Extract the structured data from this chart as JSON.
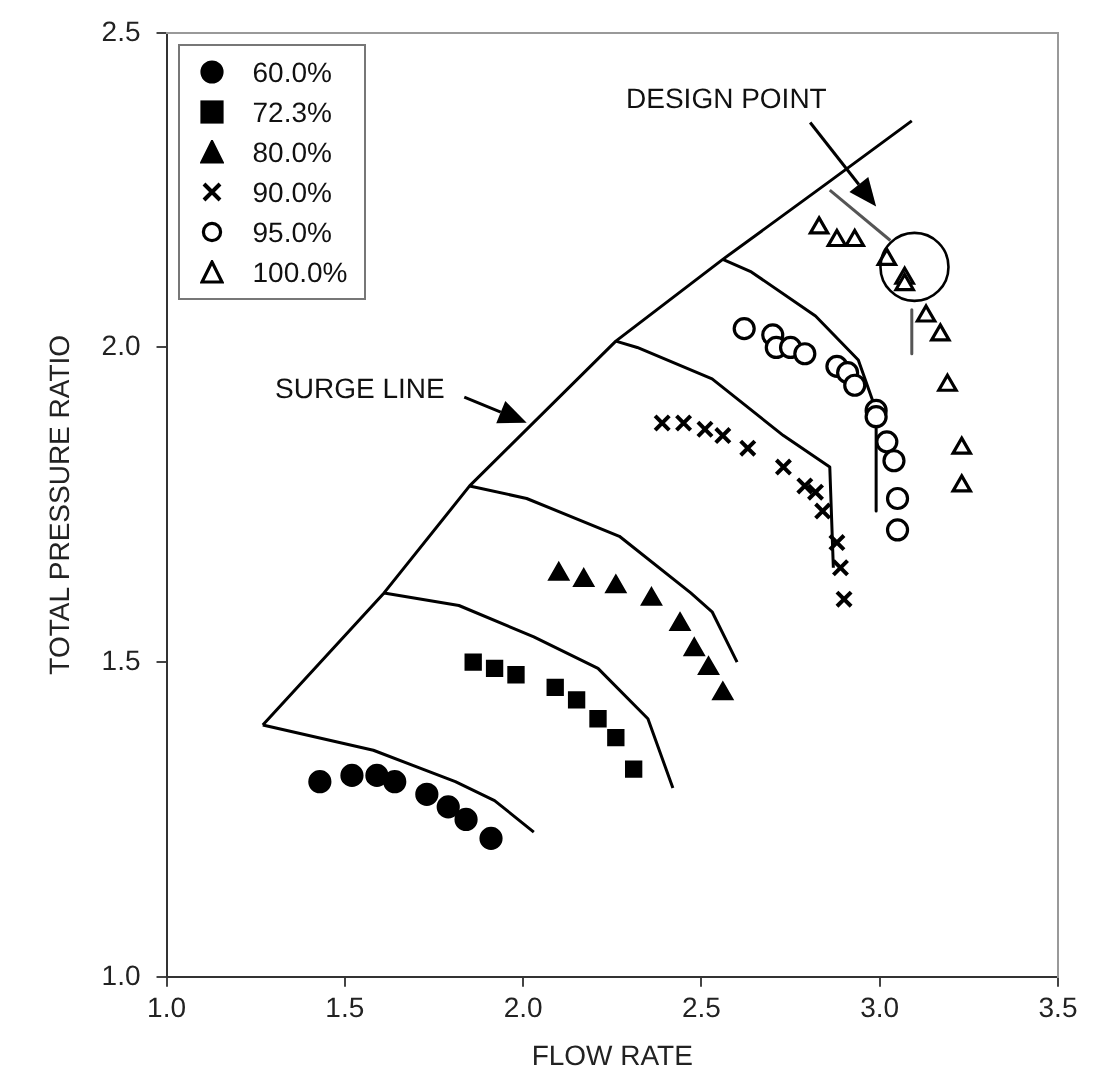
{
  "chart_data": {
    "type": "scatter",
    "xlabel": "FLOW RATE",
    "ylabel": "TOTAL PRESSURE RATIO",
    "xlim": [
      1.0,
      3.5
    ],
    "xticks": [
      {
        "value": 1,
        "label": "1.0"
      },
      {
        "value": 1.5,
        "label": "1.5"
      },
      {
        "value": 2,
        "label": "2.0"
      },
      {
        "value": 2.5,
        "label": "2.5"
      },
      {
        "value": 3,
        "label": "3.0"
      },
      {
        "value": 3.5,
        "label": "3.5"
      }
    ],
    "ylim": [
      1.0,
      2.5
    ],
    "yticks": [
      {
        "value": 1,
        "label": "1.0"
      },
      {
        "value": 1.5,
        "label": "1.5"
      },
      {
        "value": 2,
        "label": "2.0"
      },
      {
        "value": 2.5,
        "label": "2.5"
      }
    ],
    "grid": false,
    "legend": "top left",
    "series": [
      {
        "name": "60.0%",
        "color": "#000000",
        "marker": "circle",
        "x": [
          1.43,
          1.52,
          1.59,
          1.64,
          1.73,
          1.79,
          1.84,
          1.91
        ],
        "values": [
          1.31,
          1.32,
          1.32,
          1.31,
          1.29,
          1.27,
          1.25,
          1.22
        ]
      },
      {
        "name": "72.3%",
        "color": "#000000",
        "marker": "square",
        "x": [
          1.86,
          1.92,
          1.98,
          2.09,
          2.15,
          2.21,
          2.26,
          2.31
        ],
        "values": [
          1.5,
          1.49,
          1.48,
          1.46,
          1.44,
          1.41,
          1.38,
          1.33
        ]
      },
      {
        "name": "80.0%",
        "color": "#000000",
        "marker": "triangle",
        "x": [
          2.1,
          2.17,
          2.26,
          2.36,
          2.44,
          2.48,
          2.52,
          2.56
        ],
        "values": [
          1.64,
          1.63,
          1.62,
          1.6,
          1.56,
          1.52,
          1.49,
          1.45
        ]
      },
      {
        "name": "90.0%",
        "color": "#000000",
        "marker": "cross",
        "x": [
          2.39,
          2.45,
          2.51,
          2.56,
          2.63,
          2.73,
          2.79,
          2.82,
          2.84,
          2.88,
          2.89,
          2.9
        ],
        "values": [
          1.88,
          1.88,
          1.87,
          1.86,
          1.84,
          1.81,
          1.78,
          1.77,
          1.74,
          1.69,
          1.65,
          1.6
        ]
      },
      {
        "name": "95.0%",
        "color": "#000000",
        "marker": "circle",
        "x": [
          2.62,
          2.7,
          2.71,
          2.75,
          2.79,
          2.88,
          2.91,
          2.93,
          2.99,
          2.99,
          3.02,
          3.04,
          3.05,
          3.05
        ],
        "values": [
          2.03,
          2.02,
          2.0,
          2.0,
          1.99,
          1.97,
          1.96,
          1.94,
          1.9,
          1.89,
          1.85,
          1.82,
          1.76,
          1.71
        ]
      },
      {
        "name": "100.0%",
        "color": "#000000",
        "marker": "triangle",
        "x": [
          2.83,
          2.88,
          2.93,
          3.02,
          3.07,
          3.07,
          3.13,
          3.17,
          3.19,
          3.23,
          3.23
        ],
        "values": [
          2.19,
          2.17,
          2.17,
          2.14,
          2.11,
          2.1,
          2.05,
          2.02,
          1.94,
          1.84,
          1.78
        ]
      },
      {
        "type": "line",
        "color": "#000000",
        "marker": "none",
        "x": [
          1.27,
          1.61,
          1.85,
          2.26,
          2.56,
          2.85,
          3.09
        ],
        "values": [
          1.4,
          1.61,
          1.78,
          2.01,
          2.14,
          2.26,
          2.36
        ]
      },
      {
        "type": "line",
        "color": "#000000",
        "marker": "none",
        "x": [
          1.27,
          1.58,
          1.81,
          1.92,
          2.03
        ],
        "values": [
          1.4,
          1.36,
          1.31,
          1.28,
          1.23
        ]
      },
      {
        "type": "line",
        "color": "#000000",
        "marker": "none",
        "x": [
          1.61,
          1.82,
          2.03,
          2.21,
          2.35,
          2.42
        ],
        "values": [
          1.61,
          1.59,
          1.54,
          1.49,
          1.41,
          1.3
        ]
      },
      {
        "type": "line",
        "color": "#000000",
        "marker": "none",
        "x": [
          1.85,
          2.01,
          2.27,
          2.47,
          2.53,
          2.6
        ],
        "values": [
          1.78,
          1.76,
          1.7,
          1.61,
          1.58,
          1.5
        ]
      },
      {
        "type": "line",
        "color": "#000000",
        "marker": "none",
        "x": [
          2.26,
          2.32,
          2.53,
          2.73,
          2.86,
          2.87
        ],
        "values": [
          2.01,
          2.0,
          1.95,
          1.86,
          1.81,
          1.65
        ]
      },
      {
        "type": "line",
        "color": "#000000",
        "marker": "none",
        "x": [
          2.56,
          2.64,
          2.82,
          2.94,
          2.99,
          2.99
        ],
        "values": [
          2.14,
          2.12,
          2.05,
          1.98,
          1.9,
          1.74
        ]
      },
      {
        "type": "line",
        "color": "#555555",
        "marker": "none",
        "x": [
          2.86,
          3.03
        ],
        "values": [
          2.25,
          2.17
        ]
      },
      {
        "type": "line",
        "color": "#555555",
        "marker": "none",
        "x": [
          3.09,
          3.09
        ],
        "values": [
          2.06,
          1.99
        ]
      }
    ],
    "annotations": [
      "DESIGN POINT",
      "SURGE LINE"
    ]
  }
}
